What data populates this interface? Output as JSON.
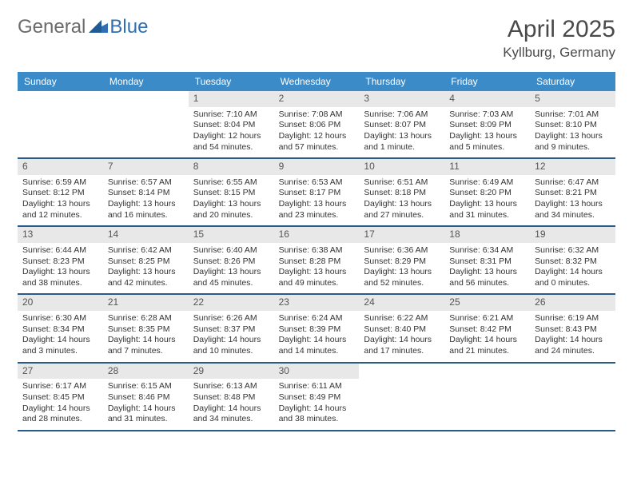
{
  "brand": {
    "part1": "General",
    "part2": "Blue"
  },
  "title": "April 2025",
  "location": "Kyllburg, Germany",
  "colors": {
    "header_bg": "#3b8bc9",
    "header_text": "#ffffff",
    "row_divider": "#2a5a8a",
    "day_bar_bg": "#e8e8e8",
    "brand_gray": "#6b6b6b",
    "brand_blue": "#2f6fb3"
  },
  "dayHeaders": [
    "Sunday",
    "Monday",
    "Tuesday",
    "Wednesday",
    "Thursday",
    "Friday",
    "Saturday"
  ],
  "weeks": [
    [
      null,
      null,
      {
        "n": "1",
        "sr": "Sunrise: 7:10 AM",
        "ss": "Sunset: 8:04 PM",
        "dl": "Daylight: 12 hours and 54 minutes."
      },
      {
        "n": "2",
        "sr": "Sunrise: 7:08 AM",
        "ss": "Sunset: 8:06 PM",
        "dl": "Daylight: 12 hours and 57 minutes."
      },
      {
        "n": "3",
        "sr": "Sunrise: 7:06 AM",
        "ss": "Sunset: 8:07 PM",
        "dl": "Daylight: 13 hours and 1 minute."
      },
      {
        "n": "4",
        "sr": "Sunrise: 7:03 AM",
        "ss": "Sunset: 8:09 PM",
        "dl": "Daylight: 13 hours and 5 minutes."
      },
      {
        "n": "5",
        "sr": "Sunrise: 7:01 AM",
        "ss": "Sunset: 8:10 PM",
        "dl": "Daylight: 13 hours and 9 minutes."
      }
    ],
    [
      {
        "n": "6",
        "sr": "Sunrise: 6:59 AM",
        "ss": "Sunset: 8:12 PM",
        "dl": "Daylight: 13 hours and 12 minutes."
      },
      {
        "n": "7",
        "sr": "Sunrise: 6:57 AM",
        "ss": "Sunset: 8:14 PM",
        "dl": "Daylight: 13 hours and 16 minutes."
      },
      {
        "n": "8",
        "sr": "Sunrise: 6:55 AM",
        "ss": "Sunset: 8:15 PM",
        "dl": "Daylight: 13 hours and 20 minutes."
      },
      {
        "n": "9",
        "sr": "Sunrise: 6:53 AM",
        "ss": "Sunset: 8:17 PM",
        "dl": "Daylight: 13 hours and 23 minutes."
      },
      {
        "n": "10",
        "sr": "Sunrise: 6:51 AM",
        "ss": "Sunset: 8:18 PM",
        "dl": "Daylight: 13 hours and 27 minutes."
      },
      {
        "n": "11",
        "sr": "Sunrise: 6:49 AM",
        "ss": "Sunset: 8:20 PM",
        "dl": "Daylight: 13 hours and 31 minutes."
      },
      {
        "n": "12",
        "sr": "Sunrise: 6:47 AM",
        "ss": "Sunset: 8:21 PM",
        "dl": "Daylight: 13 hours and 34 minutes."
      }
    ],
    [
      {
        "n": "13",
        "sr": "Sunrise: 6:44 AM",
        "ss": "Sunset: 8:23 PM",
        "dl": "Daylight: 13 hours and 38 minutes."
      },
      {
        "n": "14",
        "sr": "Sunrise: 6:42 AM",
        "ss": "Sunset: 8:25 PM",
        "dl": "Daylight: 13 hours and 42 minutes."
      },
      {
        "n": "15",
        "sr": "Sunrise: 6:40 AM",
        "ss": "Sunset: 8:26 PM",
        "dl": "Daylight: 13 hours and 45 minutes."
      },
      {
        "n": "16",
        "sr": "Sunrise: 6:38 AM",
        "ss": "Sunset: 8:28 PM",
        "dl": "Daylight: 13 hours and 49 minutes."
      },
      {
        "n": "17",
        "sr": "Sunrise: 6:36 AM",
        "ss": "Sunset: 8:29 PM",
        "dl": "Daylight: 13 hours and 52 minutes."
      },
      {
        "n": "18",
        "sr": "Sunrise: 6:34 AM",
        "ss": "Sunset: 8:31 PM",
        "dl": "Daylight: 13 hours and 56 minutes."
      },
      {
        "n": "19",
        "sr": "Sunrise: 6:32 AM",
        "ss": "Sunset: 8:32 PM",
        "dl": "Daylight: 14 hours and 0 minutes."
      }
    ],
    [
      {
        "n": "20",
        "sr": "Sunrise: 6:30 AM",
        "ss": "Sunset: 8:34 PM",
        "dl": "Daylight: 14 hours and 3 minutes."
      },
      {
        "n": "21",
        "sr": "Sunrise: 6:28 AM",
        "ss": "Sunset: 8:35 PM",
        "dl": "Daylight: 14 hours and 7 minutes."
      },
      {
        "n": "22",
        "sr": "Sunrise: 6:26 AM",
        "ss": "Sunset: 8:37 PM",
        "dl": "Daylight: 14 hours and 10 minutes."
      },
      {
        "n": "23",
        "sr": "Sunrise: 6:24 AM",
        "ss": "Sunset: 8:39 PM",
        "dl": "Daylight: 14 hours and 14 minutes."
      },
      {
        "n": "24",
        "sr": "Sunrise: 6:22 AM",
        "ss": "Sunset: 8:40 PM",
        "dl": "Daylight: 14 hours and 17 minutes."
      },
      {
        "n": "25",
        "sr": "Sunrise: 6:21 AM",
        "ss": "Sunset: 8:42 PM",
        "dl": "Daylight: 14 hours and 21 minutes."
      },
      {
        "n": "26",
        "sr": "Sunrise: 6:19 AM",
        "ss": "Sunset: 8:43 PM",
        "dl": "Daylight: 14 hours and 24 minutes."
      }
    ],
    [
      {
        "n": "27",
        "sr": "Sunrise: 6:17 AM",
        "ss": "Sunset: 8:45 PM",
        "dl": "Daylight: 14 hours and 28 minutes."
      },
      {
        "n": "28",
        "sr": "Sunrise: 6:15 AM",
        "ss": "Sunset: 8:46 PM",
        "dl": "Daylight: 14 hours and 31 minutes."
      },
      {
        "n": "29",
        "sr": "Sunrise: 6:13 AM",
        "ss": "Sunset: 8:48 PM",
        "dl": "Daylight: 14 hours and 34 minutes."
      },
      {
        "n": "30",
        "sr": "Sunrise: 6:11 AM",
        "ss": "Sunset: 8:49 PM",
        "dl": "Daylight: 14 hours and 38 minutes."
      },
      null,
      null,
      null
    ]
  ]
}
